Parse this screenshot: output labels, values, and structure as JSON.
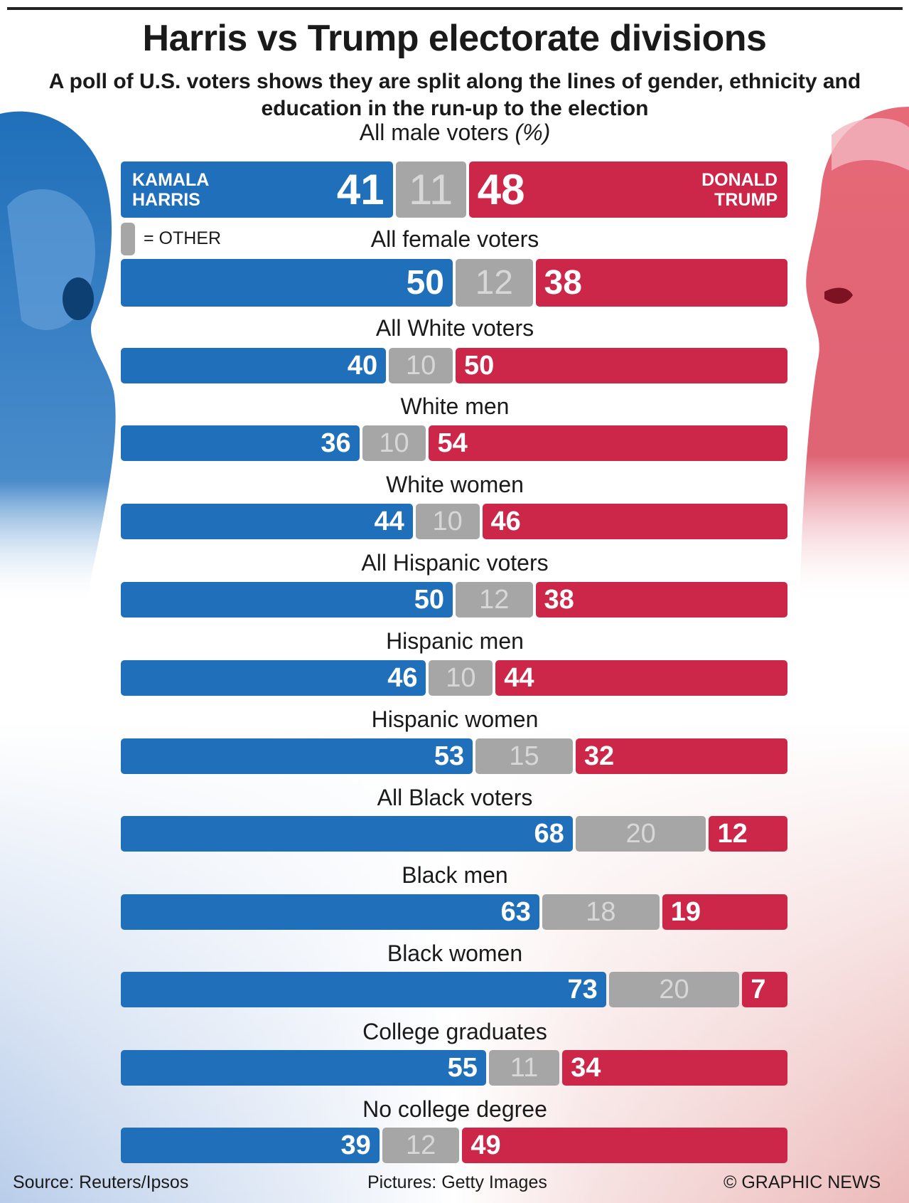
{
  "title": "Harris vs Trump electorate divisions",
  "subtitle": "A poll of U.S. voters shows they are split along the lines of gender, ethnicity and education in the run-up to the election",
  "unit_suffix": "(%)",
  "candidates": {
    "harris_line1": "KAMALA",
    "harris_line2": "HARRIS",
    "trump_line1": "DONALD",
    "trump_line2": "TRUMP"
  },
  "legend": {
    "other_label": "= OTHER"
  },
  "colors": {
    "harris": "#1f6fba",
    "other": "#a6a6a6",
    "trump": "#cc2749"
  },
  "chart_data": {
    "type": "bar",
    "orientation": "horizontal",
    "stacked": true,
    "title": "Harris vs Trump electorate divisions",
    "unit": "%",
    "series_names": [
      "Harris",
      "Other",
      "Trump"
    ],
    "categories": [
      "All male voters",
      "All female voters",
      "All White voters",
      "White men",
      "White women",
      "All Hispanic voters",
      "Hispanic men",
      "Hispanic women",
      "All Black voters",
      "Black men",
      "Black women",
      "College graduates",
      "No college degree"
    ],
    "series": [
      {
        "name": "Harris",
        "values": [
          41,
          50,
          40,
          36,
          44,
          50,
          46,
          53,
          68,
          63,
          73,
          55,
          39
        ]
      },
      {
        "name": "Other",
        "values": [
          11,
          12,
          10,
          10,
          10,
          12,
          10,
          15,
          20,
          18,
          20,
          11,
          12
        ]
      },
      {
        "name": "Trump",
        "values": [
          48,
          38,
          50,
          54,
          46,
          38,
          44,
          32,
          12,
          19,
          7,
          34,
          49
        ]
      }
    ],
    "xlim": [
      0,
      100
    ]
  },
  "footer": {
    "source": "Source: Reuters/Ipsos",
    "pictures": "Pictures: Getty Images",
    "copyright": "© GRAPHIC NEWS"
  }
}
